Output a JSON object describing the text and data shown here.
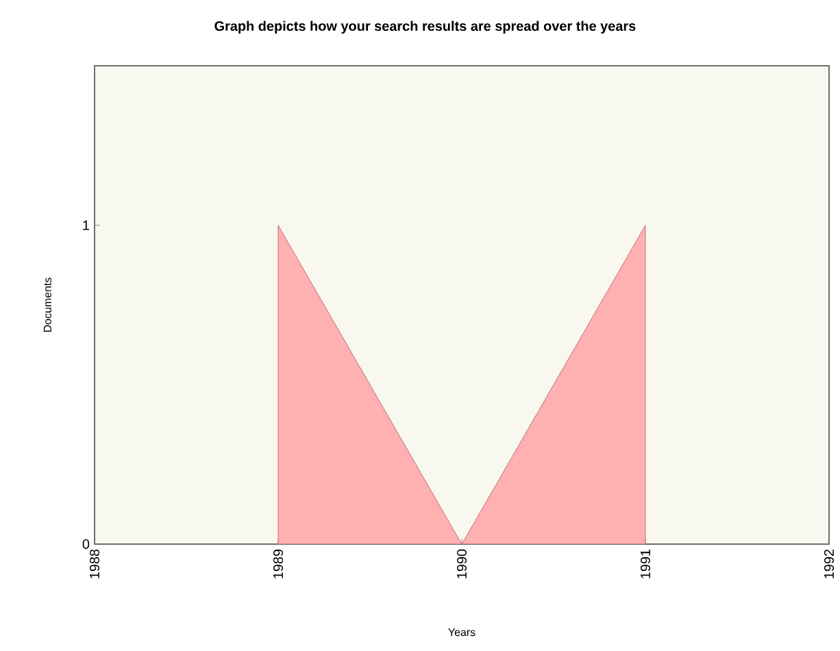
{
  "chart_data": {
    "type": "area",
    "title": "Graph depicts how your search results are spread over the years",
    "xlabel": "Years",
    "ylabel": "Documents",
    "x": [
      1989,
      1990,
      1991
    ],
    "series": [
      {
        "color": "#ffb0b0",
        "values": [
          1,
          0,
          1
        ]
      }
    ],
    "xlim": [
      1988,
      1992
    ],
    "ylim": [
      0,
      1.5
    ],
    "xticks": [
      1988,
      1989,
      1990,
      1991,
      1992
    ],
    "yticks": [
      0,
      1
    ],
    "grid": false
  }
}
